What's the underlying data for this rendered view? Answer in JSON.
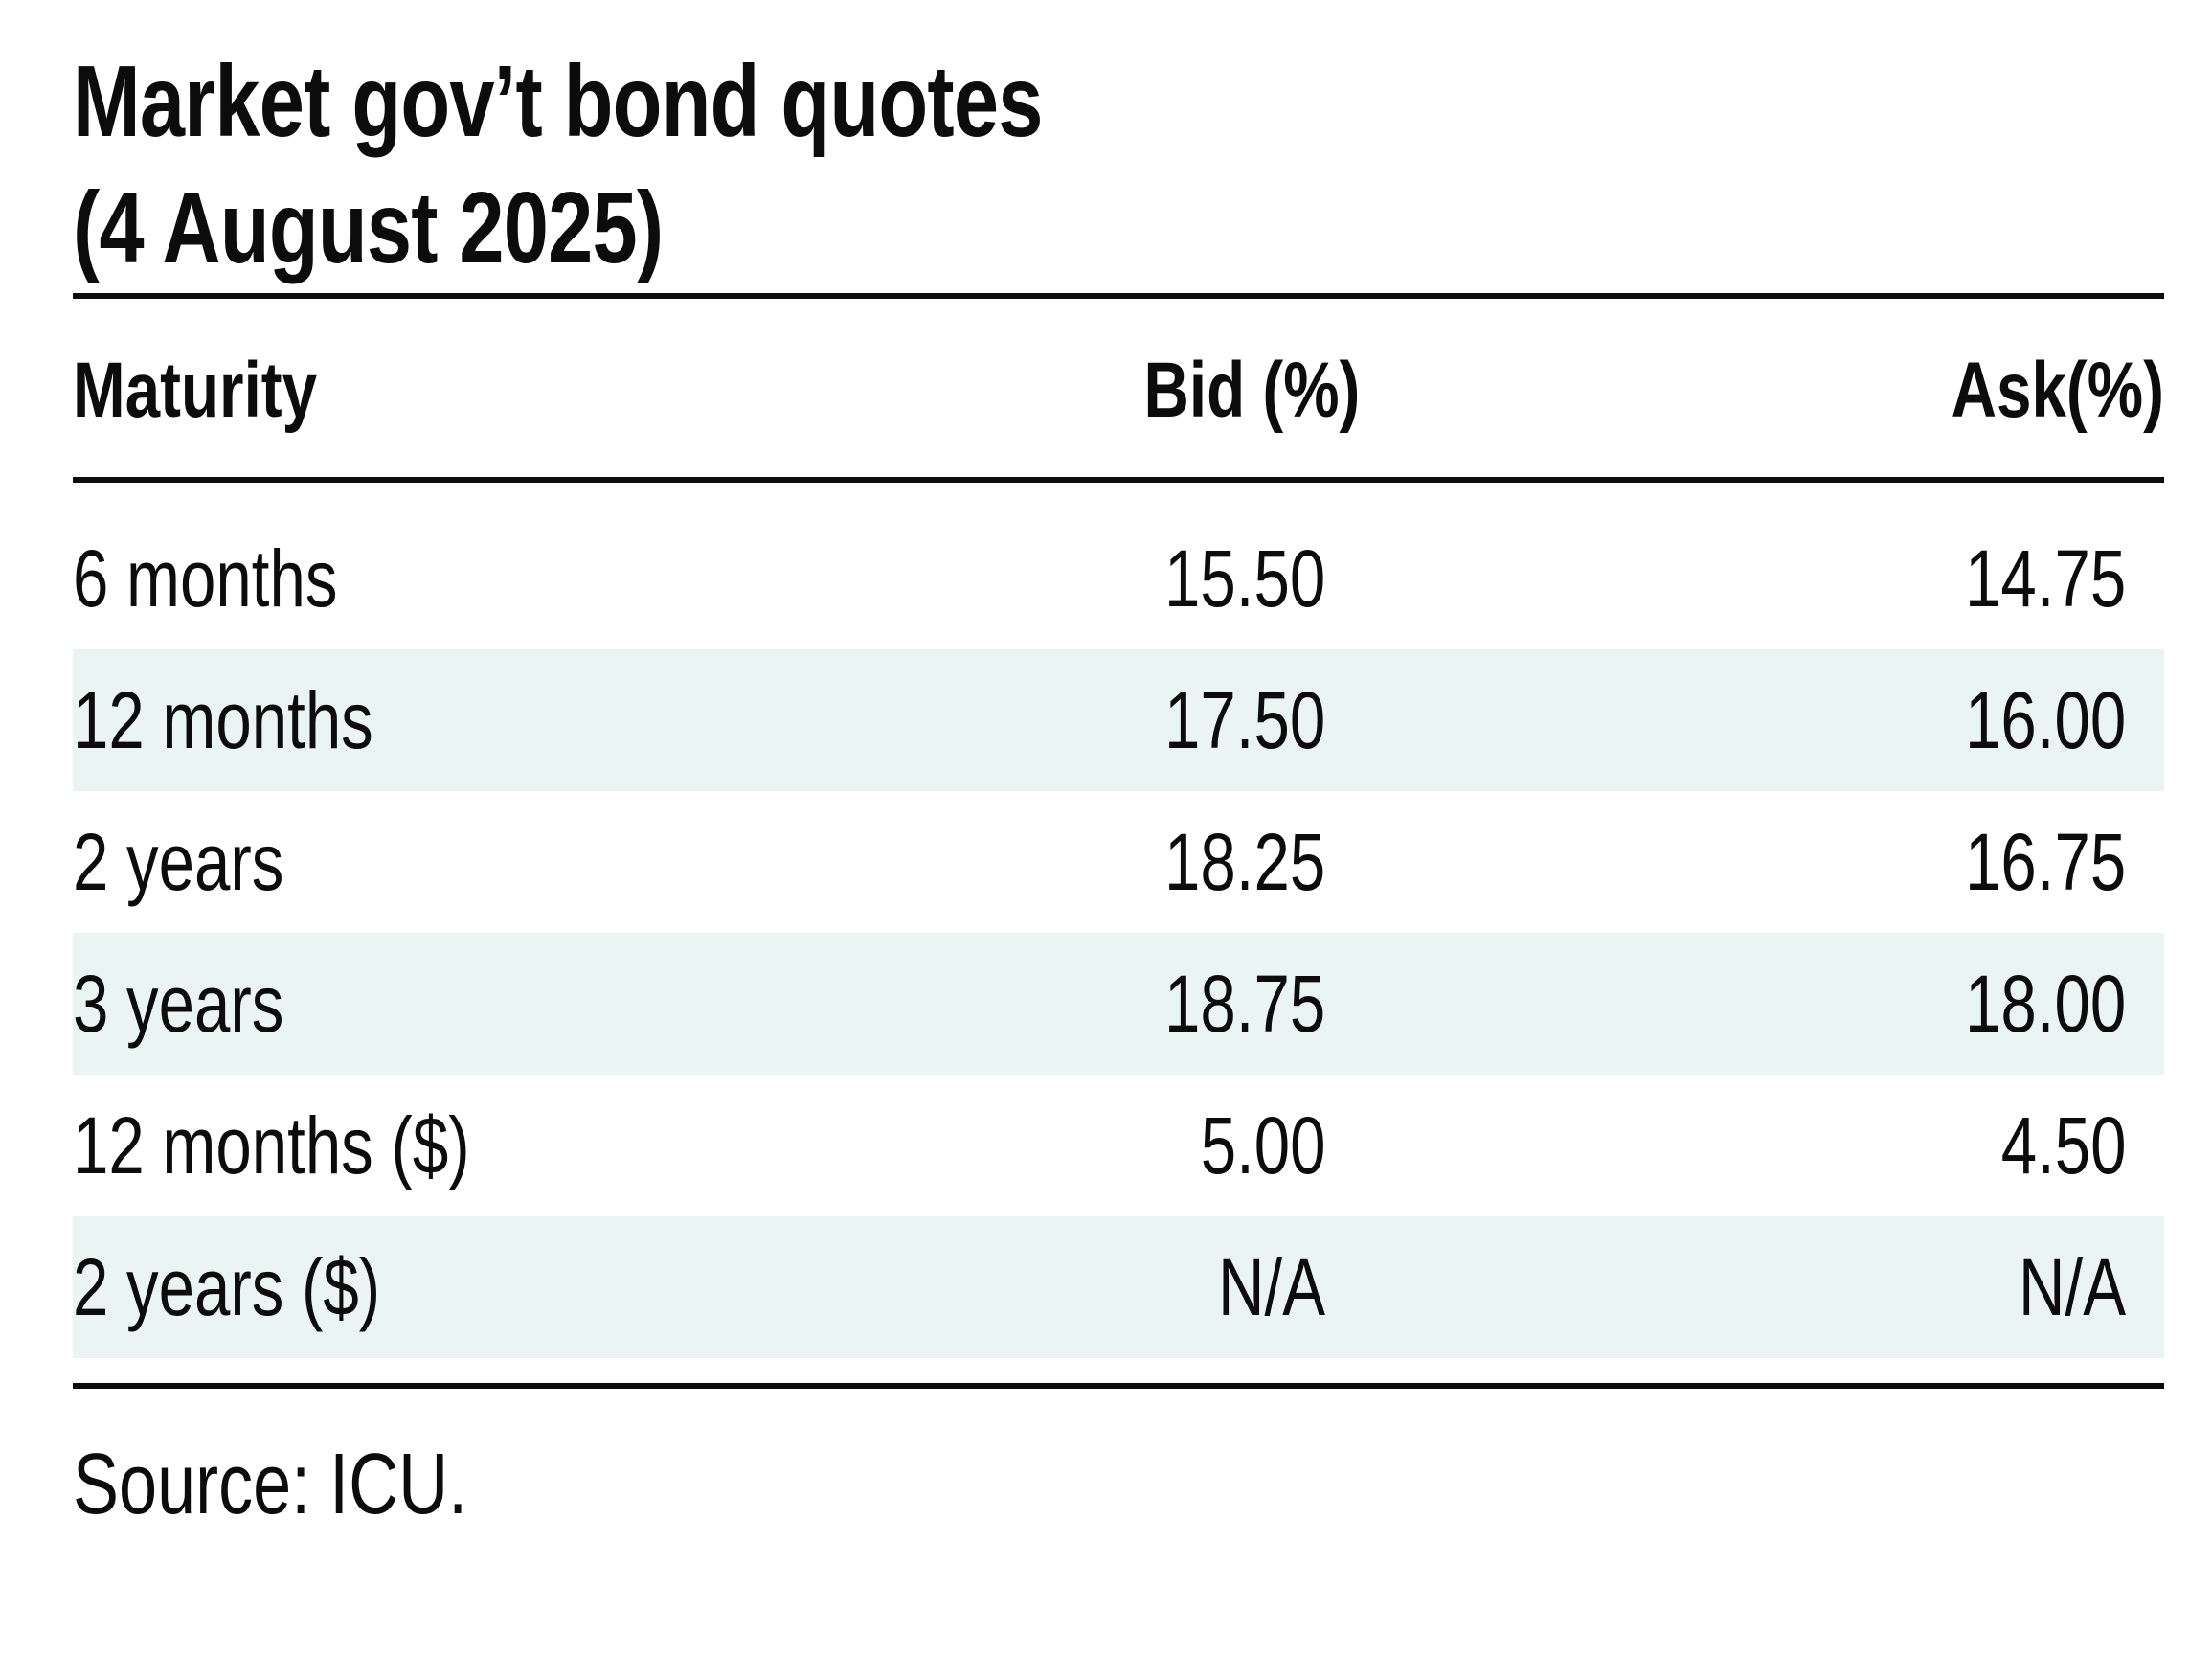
{
  "title": {
    "line1": "Market gov’t bond quotes",
    "line2": "(4 August 2025)"
  },
  "table": {
    "headers": {
      "maturity": "Maturity",
      "bid": "Bid (%)",
      "ask": "Ask(%)"
    },
    "rows": [
      {
        "maturity": "6 months",
        "bid": "15.50",
        "ask": "14.75"
      },
      {
        "maturity": "12 months",
        "bid": "17.50",
        "ask": "16.00"
      },
      {
        "maturity": "2 years",
        "bid": "18.25",
        "ask": "16.75"
      },
      {
        "maturity": "3 years",
        "bid": "18.75",
        "ask": "18.00"
      },
      {
        "maturity": "12 months ($)",
        "bid": "5.00",
        "ask": "4.50"
      },
      {
        "maturity": "2 years ($)",
        "bid": "N/A",
        "ask": "N/A"
      }
    ]
  },
  "source": "Source: ICU.",
  "colors": {
    "text": "#0c0c0c",
    "stripe": "#eaf4f2",
    "rule": "#0c0c0c",
    "background": "#ffffff"
  }
}
